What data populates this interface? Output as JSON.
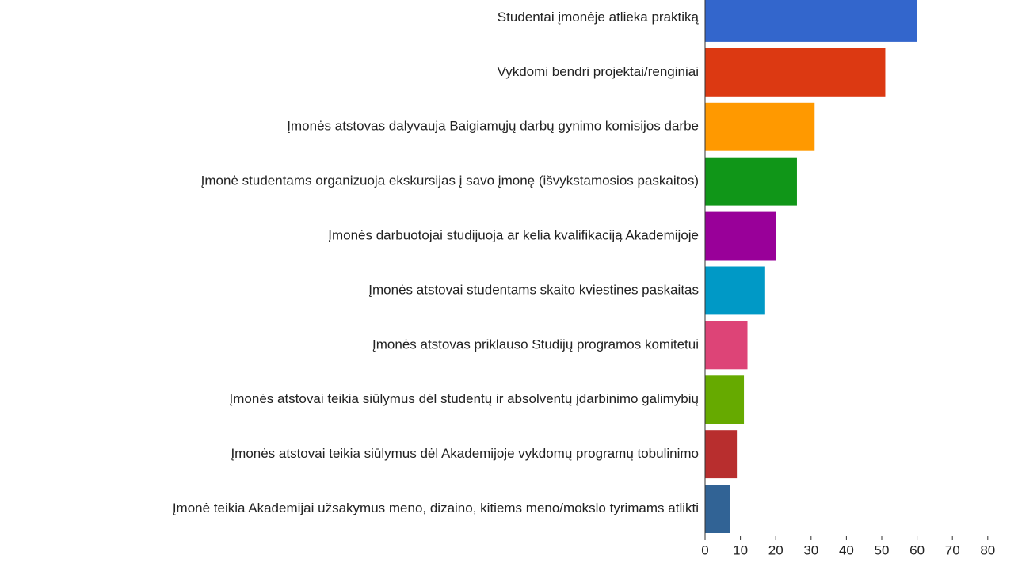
{
  "chart_data": {
    "type": "bar",
    "orientation": "horizontal",
    "categories": [
      "Studentai įmonėje atlieka praktiką",
      "Vykdomi bendri projektai/renginiai",
      "Įmonės atstovas dalyvauja Baigiamųjų darbų gynimo komisijos darbe",
      "Įmonė studentams organizuoja ekskursijas į savo įmonę (išvykstamosios paskaitos)",
      "Įmonės darbuotojai studijuoja ar kelia kvalifikaciją Akademijoje",
      "Įmonės atstovai studentams skaito kviestines paskaitas",
      "Įmonės atstovas priklauso Studijų programos komitetui",
      "Įmonės atstovai teikia siūlymus dėl studentų ir absolventų įdarbinimo galimybių",
      "Įmonės atstovai teikia siūlymus dėl Akademijoje vykdomų programų tobulinimo",
      "Įmonė teikia Akademijai užsakymus meno, dizaino, kitiems meno/mokslo tyrimams atlikti"
    ],
    "values": [
      60,
      51,
      31,
      26,
      20,
      17,
      12,
      11,
      9,
      7
    ],
    "colors": [
      "#3366cc",
      "#dc3912",
      "#ff9900",
      "#109618",
      "#990099",
      "#0099c6",
      "#dd4477",
      "#66aa00",
      "#b82e2e",
      "#316395"
    ],
    "xlim": [
      0,
      88
    ],
    "xticks": [
      0,
      10,
      20,
      30,
      40,
      50,
      60,
      70,
      80
    ]
  }
}
